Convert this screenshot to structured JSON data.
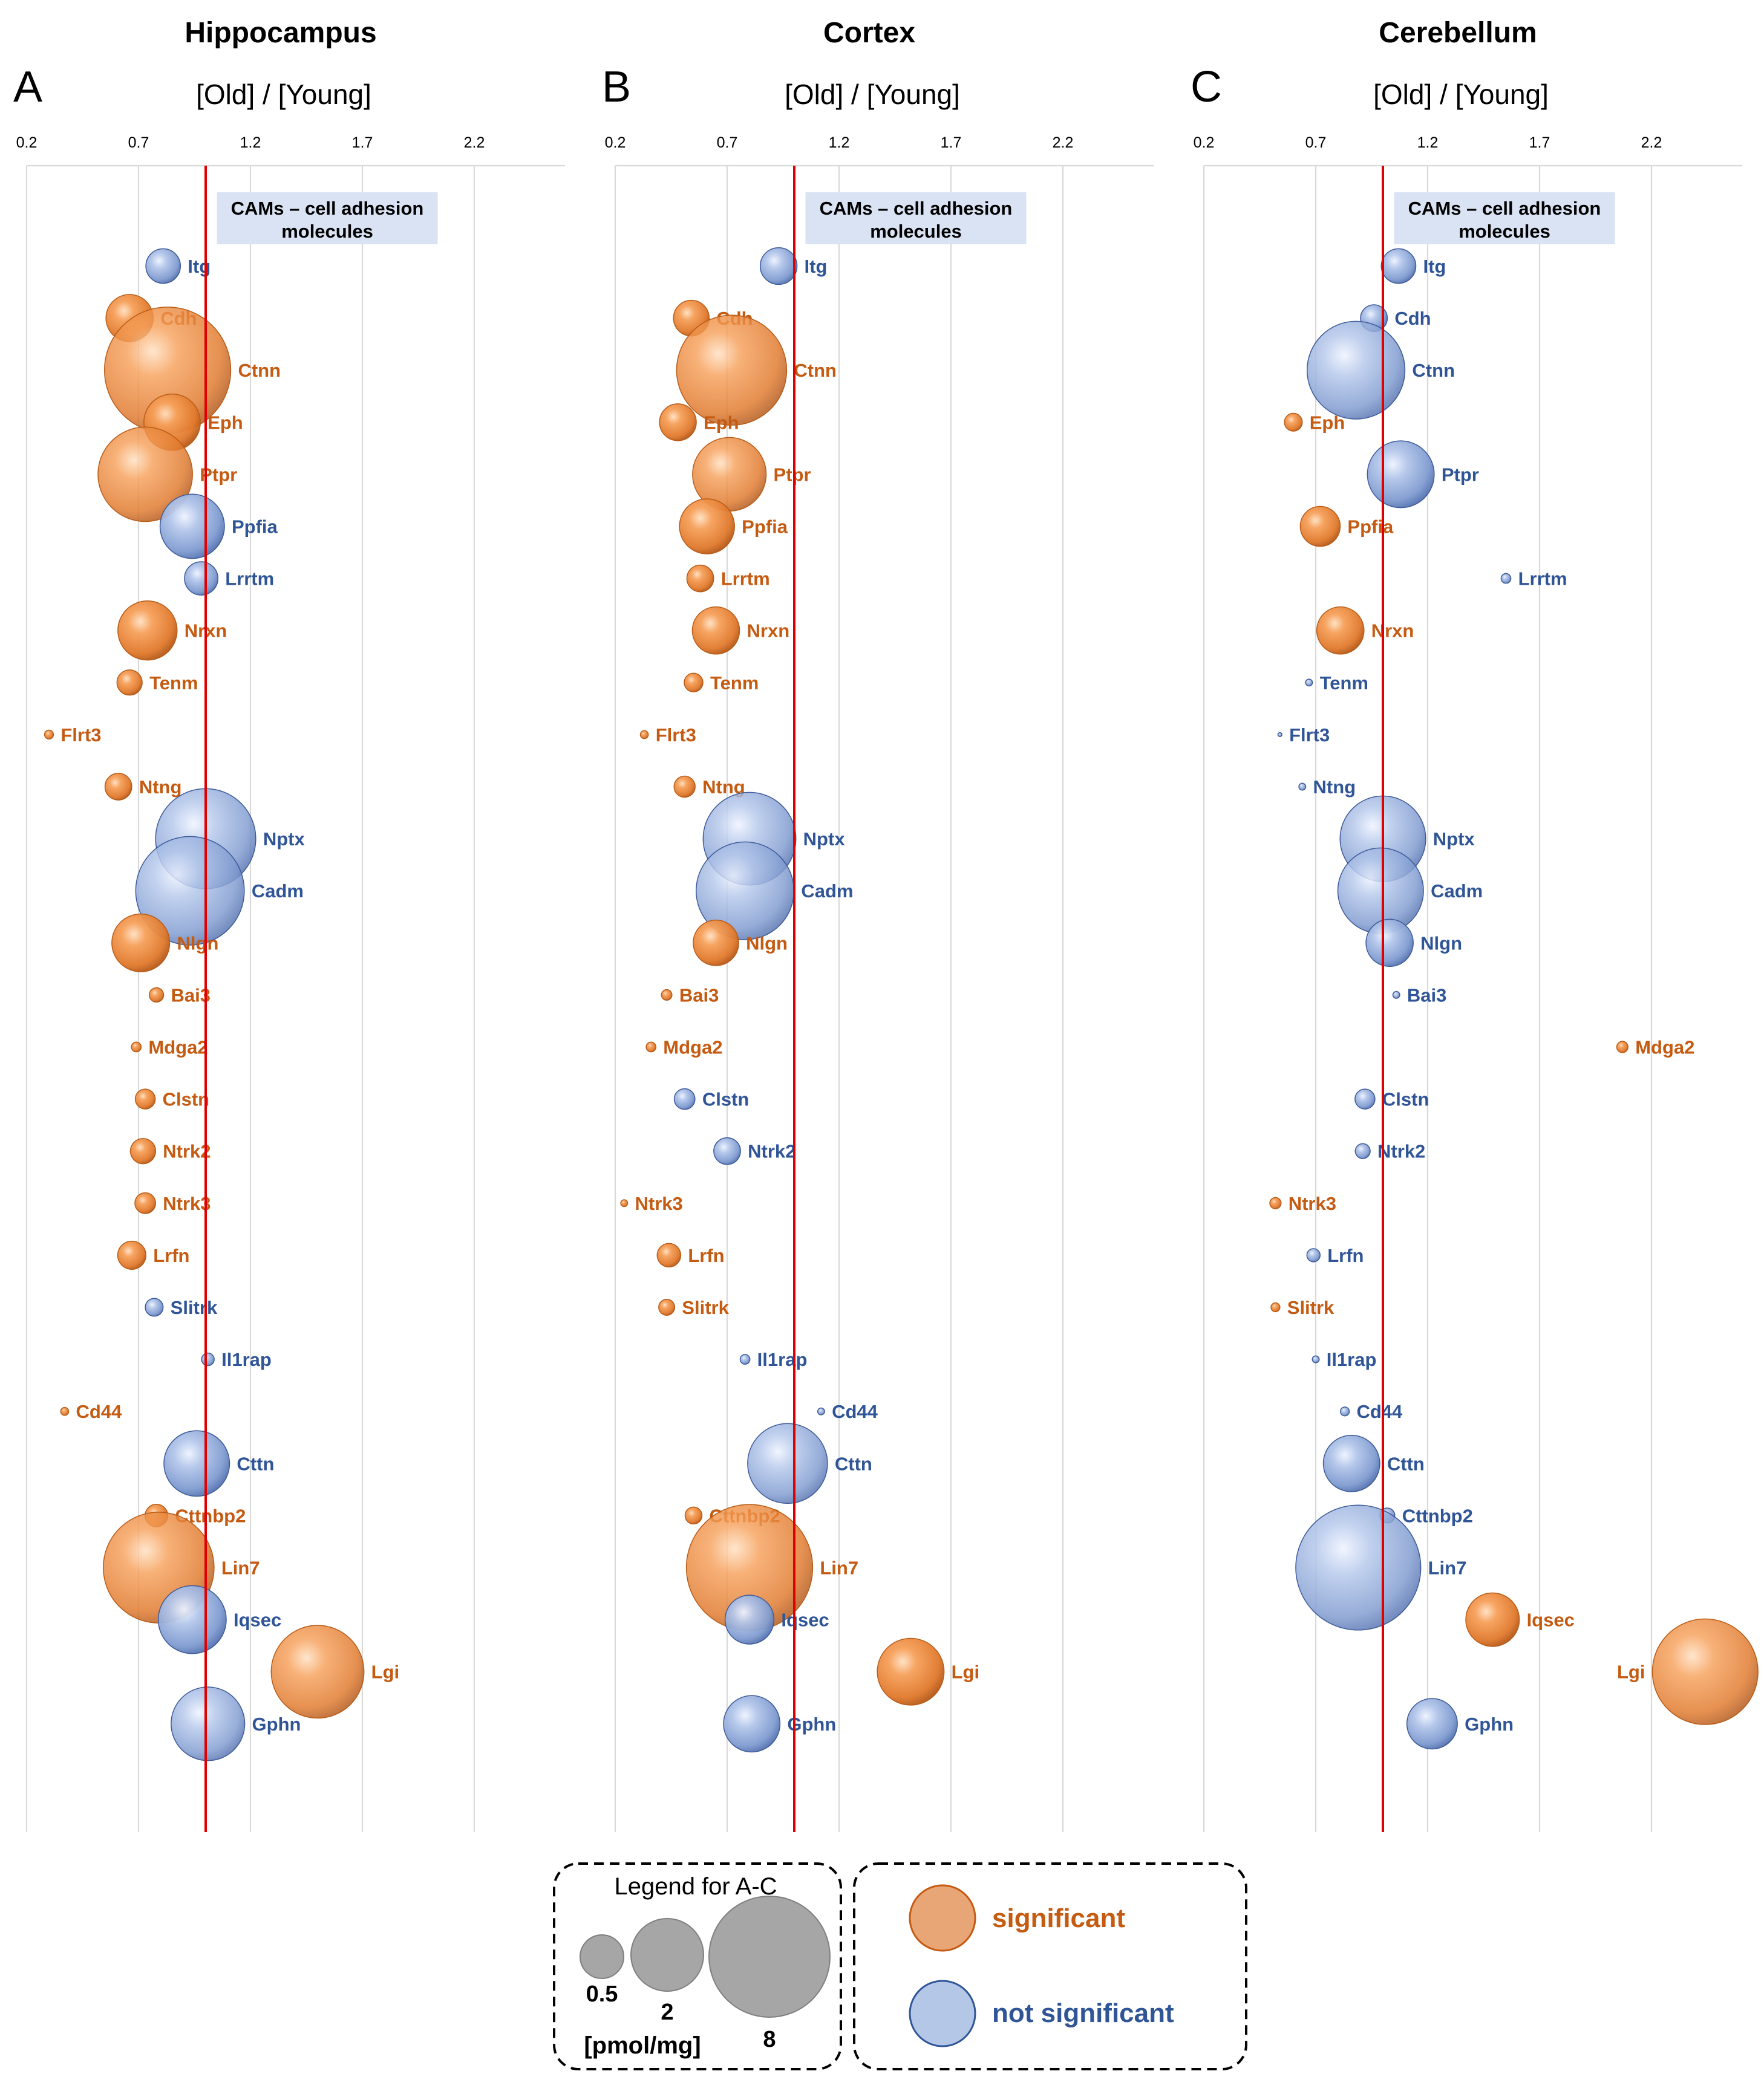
{
  "panels": [
    {
      "letter": "A",
      "title": "Hippocampus",
      "xlabel": "[Old] / [Young]",
      "ticks": [
        "0.2",
        "0.7",
        "1.2",
        "1.7",
        "2.2"
      ],
      "category_label_1": "CAMs – cell adhesion",
      "category_label_2": "molecules"
    },
    {
      "letter": "B",
      "title": "Cortex",
      "xlabel": "[Old] / [Young]",
      "ticks": [
        "0.2",
        "0.7",
        "1.2",
        "1.7",
        "2.2"
      ],
      "category_label_1": "CAMs – cell adhesion",
      "category_label_2": "molecules"
    },
    {
      "letter": "C",
      "title": "Cerebellum",
      "xlabel": "[Old] / [Young]",
      "ticks": [
        "0.2",
        "0.7",
        "1.2",
        "1.7",
        "2.2"
      ],
      "category_label_1": "CAMs – cell adhesion",
      "category_label_2": "molecules"
    }
  ],
  "legend": {
    "title": "Legend for A-C",
    "size_labels": [
      "0.5",
      "2",
      "8"
    ],
    "unit": "[pmol/mg]",
    "significant": "significant",
    "not_significant": "not significant"
  },
  "colors": {
    "significant": "#e0782b",
    "not_significant": "#7f9bd0",
    "significant_text": "#c55a11",
    "not_significant_text": "#2f5597",
    "reference_line": "#e00000",
    "size_legend": "#a6a6a6"
  },
  "chart_data": [
    {
      "type": "scatter",
      "title": "Hippocampus",
      "xlabel": "[Old] / [Young]",
      "xlim": [
        0.2,
        2.6
      ],
      "x_ticks": [
        0.2,
        0.7,
        1.2,
        1.7,
        2.2
      ],
      "reference_line_x": 1.0,
      "points": [
        {
          "protein": "Itg",
          "ratio": 0.81,
          "amount": 0.75,
          "significant": false
        },
        {
          "protein": "Cdh",
          "ratio": 0.66,
          "amount": 1.4,
          "significant": true
        },
        {
          "protein": "Ctnn",
          "ratio": 0.83,
          "amount": 10.0,
          "significant": true
        },
        {
          "protein": "Eph",
          "ratio": 0.85,
          "amount": 2.0,
          "significant": true
        },
        {
          "protein": "Ptpr",
          "ratio": 0.73,
          "amount": 5.6,
          "significant": true
        },
        {
          "protein": "Ppfia",
          "ratio": 0.94,
          "amount": 2.6,
          "significant": false
        },
        {
          "protein": "Lrrtm",
          "ratio": 0.98,
          "amount": 0.7,
          "significant": false
        },
        {
          "protein": "Nrxn",
          "ratio": 0.74,
          "amount": 2.2,
          "significant": true
        },
        {
          "protein": "Tenm",
          "ratio": 0.66,
          "amount": 0.4,
          "significant": true
        },
        {
          "protein": "Flrt3",
          "ratio": 0.3,
          "amount": 0.05,
          "significant": true
        },
        {
          "protein": "Ntng",
          "ratio": 0.61,
          "amount": 0.45,
          "significant": true
        },
        {
          "protein": "Nptx",
          "ratio": 1.0,
          "amount": 6.3,
          "significant": false
        },
        {
          "protein": "Cadm",
          "ratio": 0.93,
          "amount": 7.4,
          "significant": false
        },
        {
          "protein": "Nlgn",
          "ratio": 0.71,
          "amount": 2.1,
          "significant": true
        },
        {
          "protein": "Bai3",
          "ratio": 0.78,
          "amount": 0.13,
          "significant": true
        },
        {
          "protein": "Mdga2",
          "ratio": 0.69,
          "amount": 0.06,
          "significant": true
        },
        {
          "protein": "Clstn",
          "ratio": 0.73,
          "amount": 0.25,
          "significant": true
        },
        {
          "protein": "Ntrk2",
          "ratio": 0.72,
          "amount": 0.4,
          "significant": true
        },
        {
          "protein": "Ntrk3",
          "ratio": 0.73,
          "amount": 0.27,
          "significant": true
        },
        {
          "protein": "Lrfn",
          "ratio": 0.67,
          "amount": 0.5,
          "significant": true
        },
        {
          "protein": "Slitrk",
          "ratio": 0.77,
          "amount": 0.2,
          "significant": false
        },
        {
          "protein": "Il1rap",
          "ratio": 1.01,
          "amount": 0.1,
          "significant": false
        },
        {
          "protein": "Cd44",
          "ratio": 0.37,
          "amount": 0.04,
          "significant": true
        },
        {
          "protein": "Cttn",
          "ratio": 0.96,
          "amount": 2.7,
          "significant": false
        },
        {
          "protein": "Cttnbp2",
          "ratio": 0.78,
          "amount": 0.32,
          "significant": true
        },
        {
          "protein": "Lin7",
          "ratio": 0.79,
          "amount": 7.7,
          "significant": true
        },
        {
          "protein": "Iqsec",
          "ratio": 0.94,
          "amount": 2.9,
          "significant": false
        },
        {
          "protein": "Lgi",
          "ratio": 1.5,
          "amount": 5.4,
          "significant": true
        },
        {
          "protein": "Gphn",
          "ratio": 1.01,
          "amount": 3.4,
          "significant": false
        }
      ]
    },
    {
      "type": "scatter",
      "title": "Cortex",
      "xlabel": "[Old] / [Young]",
      "xlim": [
        0.2,
        2.6
      ],
      "x_ticks": [
        0.2,
        0.7,
        1.2,
        1.7,
        2.2
      ],
      "reference_line_x": 1.0,
      "points": [
        {
          "protein": "Itg",
          "ratio": 0.93,
          "amount": 0.85,
          "significant": false
        },
        {
          "protein": "Cdh",
          "ratio": 0.54,
          "amount": 0.8,
          "significant": true
        },
        {
          "protein": "Ctnn",
          "ratio": 0.72,
          "amount": 7.6,
          "significant": true
        },
        {
          "protein": "Eph",
          "ratio": 0.48,
          "amount": 0.85,
          "significant": true
        },
        {
          "protein": "Ptpr",
          "ratio": 0.71,
          "amount": 3.4,
          "significant": true
        },
        {
          "protein": "Ppfia",
          "ratio": 0.61,
          "amount": 1.9,
          "significant": true
        },
        {
          "protein": "Lrrtm",
          "ratio": 0.58,
          "amount": 0.45,
          "significant": true
        },
        {
          "protein": "Nrxn",
          "ratio": 0.65,
          "amount": 1.4,
          "significant": true
        },
        {
          "protein": "Tenm",
          "ratio": 0.55,
          "amount": 0.22,
          "significant": true
        },
        {
          "protein": "Flrt3",
          "ratio": 0.33,
          "amount": 0.04,
          "significant": true
        },
        {
          "protein": "Ntng",
          "ratio": 0.51,
          "amount": 0.28,
          "significant": true
        },
        {
          "protein": "Nptx",
          "ratio": 0.8,
          "amount": 5.4,
          "significant": false
        },
        {
          "protein": "Cadm",
          "ratio": 0.78,
          "amount": 6.0,
          "significant": false
        },
        {
          "protein": "Nlgn",
          "ratio": 0.65,
          "amount": 1.3,
          "significant": true
        },
        {
          "protein": "Bai3",
          "ratio": 0.43,
          "amount": 0.07,
          "significant": true
        },
        {
          "protein": "Mdga2",
          "ratio": 0.36,
          "amount": 0.06,
          "significant": true
        },
        {
          "protein": "Clstn",
          "ratio": 0.51,
          "amount": 0.27,
          "significant": false
        },
        {
          "protein": "Ntrk2",
          "ratio": 0.7,
          "amount": 0.45,
          "significant": false
        },
        {
          "protein": "Ntrk3",
          "ratio": 0.24,
          "amount": 0.03,
          "significant": true
        },
        {
          "protein": "Lrfn",
          "ratio": 0.44,
          "amount": 0.35,
          "significant": true
        },
        {
          "protein": "Slitrk",
          "ratio": 0.43,
          "amount": 0.16,
          "significant": true
        },
        {
          "protein": "Il1rap",
          "ratio": 0.78,
          "amount": 0.06,
          "significant": false
        },
        {
          "protein": "Cd44",
          "ratio": 1.12,
          "amount": 0.03,
          "significant": false
        },
        {
          "protein": "Cttn",
          "ratio": 0.97,
          "amount": 4.0,
          "significant": false
        },
        {
          "protein": "Cttnbp2",
          "ratio": 0.55,
          "amount": 0.18,
          "significant": true
        },
        {
          "protein": "Lin7",
          "ratio": 0.8,
          "amount": 10.0,
          "significant": true
        },
        {
          "protein": "Iqsec",
          "ratio": 0.8,
          "amount": 1.5,
          "significant": false
        },
        {
          "protein": "Lgi",
          "ratio": 1.52,
          "amount": 2.8,
          "significant": true
        },
        {
          "protein": "Gphn",
          "ratio": 0.81,
          "amount": 2.0,
          "significant": false
        }
      ]
    },
    {
      "type": "scatter",
      "title": "Cerebellum",
      "xlabel": "[Old] / [Young]",
      "xlim": [
        0.2,
        2.6
      ],
      "x_ticks": [
        0.2,
        0.7,
        1.2,
        1.7,
        2.2
      ],
      "reference_line_x": 1.0,
      "points": [
        {
          "protein": "Itg",
          "ratio": 1.07,
          "amount": 0.75,
          "significant": false
        },
        {
          "protein": "Cdh",
          "ratio": 0.96,
          "amount": 0.45,
          "significant": false
        },
        {
          "protein": "Ctnn",
          "ratio": 0.88,
          "amount": 6.0,
          "significant": false
        },
        {
          "protein": "Eph",
          "ratio": 0.6,
          "amount": 0.2,
          "significant": true
        },
        {
          "protein": "Ptpr",
          "ratio": 1.08,
          "amount": 2.8,
          "significant": false
        },
        {
          "protein": "Ppfia",
          "ratio": 0.72,
          "amount": 1.0,
          "significant": true
        },
        {
          "protein": "Lrrtm",
          "ratio": 1.55,
          "amount": 0.06,
          "significant": false
        },
        {
          "protein": "Nrxn",
          "ratio": 0.81,
          "amount": 1.4,
          "significant": true
        },
        {
          "protein": "Tenm",
          "ratio": 0.67,
          "amount": 0.03,
          "significant": false
        },
        {
          "protein": "Flrt3",
          "ratio": 0.54,
          "amount": 0.01,
          "significant": false
        },
        {
          "protein": "Ntng",
          "ratio": 0.64,
          "amount": 0.03,
          "significant": false
        },
        {
          "protein": "Nptx",
          "ratio": 1.0,
          "amount": 4.6,
          "significant": false
        },
        {
          "protein": "Cadm",
          "ratio": 0.99,
          "amount": 4.6,
          "significant": false
        },
        {
          "protein": "Nlgn",
          "ratio": 1.03,
          "amount": 1.4,
          "significant": false
        },
        {
          "protein": "Bai3",
          "ratio": 1.06,
          "amount": 0.03,
          "significant": false
        },
        {
          "protein": "Mdga2",
          "ratio": 2.07,
          "amount": 0.08,
          "significant": true
        },
        {
          "protein": "Clstn",
          "ratio": 0.92,
          "amount": 0.25,
          "significant": false
        },
        {
          "protein": "Ntrk2",
          "ratio": 0.91,
          "amount": 0.14,
          "significant": false
        },
        {
          "protein": "Ntrk3",
          "ratio": 0.52,
          "amount": 0.08,
          "significant": true
        },
        {
          "protein": "Lrfn",
          "ratio": 0.69,
          "amount": 0.11,
          "significant": false
        },
        {
          "protein": "Slitrk",
          "ratio": 0.52,
          "amount": 0.05,
          "significant": true
        },
        {
          "protein": "Il1rap",
          "ratio": 0.7,
          "amount": 0.03,
          "significant": false
        },
        {
          "protein": "Cd44",
          "ratio": 0.83,
          "amount": 0.05,
          "significant": false
        },
        {
          "protein": "Cttn",
          "ratio": 0.86,
          "amount": 2.0,
          "significant": false
        },
        {
          "protein": "Cttnbp2",
          "ratio": 1.02,
          "amount": 0.14,
          "significant": false
        },
        {
          "protein": "Lin7",
          "ratio": 0.89,
          "amount": 9.8,
          "significant": false
        },
        {
          "protein": "Iqsec",
          "ratio": 1.49,
          "amount": 1.8,
          "significant": true
        },
        {
          "protein": "Lgi",
          "ratio": 2.44,
          "amount": 7.0,
          "significant": true
        },
        {
          "protein": "Gphn",
          "ratio": 1.22,
          "amount": 1.6,
          "significant": false
        }
      ]
    }
  ]
}
